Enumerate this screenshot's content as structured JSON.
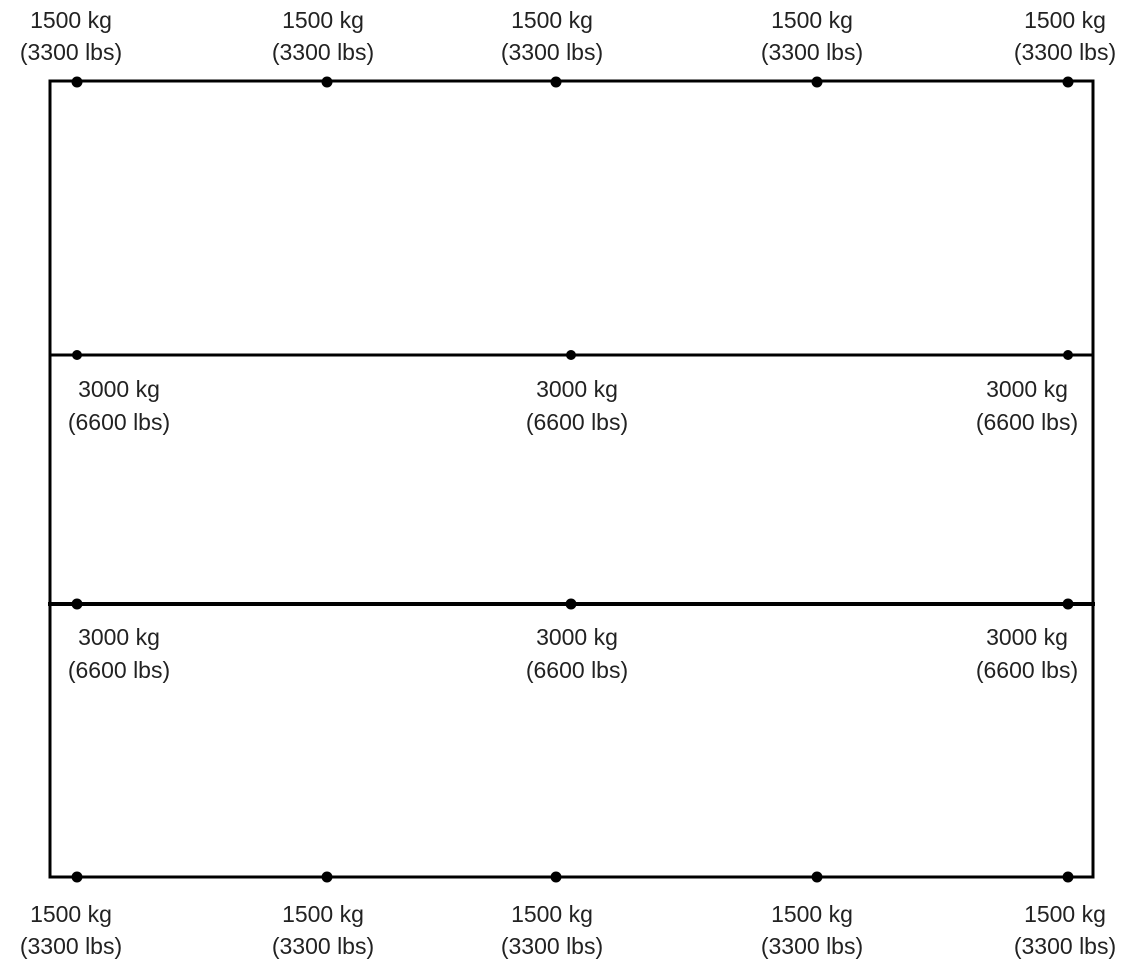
{
  "top_row": [
    {
      "kg": "1500 kg",
      "lbs": "(3300 lbs)"
    },
    {
      "kg": "1500 kg",
      "lbs": "(3300 lbs)"
    },
    {
      "kg": "1500 kg",
      "lbs": "(3300 lbs)"
    },
    {
      "kg": "1500 kg",
      "lbs": "(3300 lbs)"
    },
    {
      "kg": "1500 kg",
      "lbs": "(3300 lbs)"
    }
  ],
  "middle_row_1": [
    {
      "kg": "3000 kg",
      "lbs": "(6600 lbs)"
    },
    {
      "kg": "3000 kg",
      "lbs": "(6600 lbs)"
    },
    {
      "kg": "3000 kg",
      "lbs": "(6600 lbs)"
    }
  ],
  "middle_row_2": [
    {
      "kg": "3000 kg",
      "lbs": "(6600 lbs)"
    },
    {
      "kg": "3000 kg",
      "lbs": "(6600 lbs)"
    },
    {
      "kg": "3000 kg",
      "lbs": "(6600 lbs)"
    }
  ],
  "bottom_row": [
    {
      "kg": "1500 kg",
      "lbs": "(3300 lbs)"
    },
    {
      "kg": "1500 kg",
      "lbs": "(3300 lbs)"
    },
    {
      "kg": "1500 kg",
      "lbs": "(3300 lbs)"
    },
    {
      "kg": "1500 kg",
      "lbs": "(3300 lbs)"
    },
    {
      "kg": "1500 kg",
      "lbs": "(3300 lbs)"
    }
  ]
}
